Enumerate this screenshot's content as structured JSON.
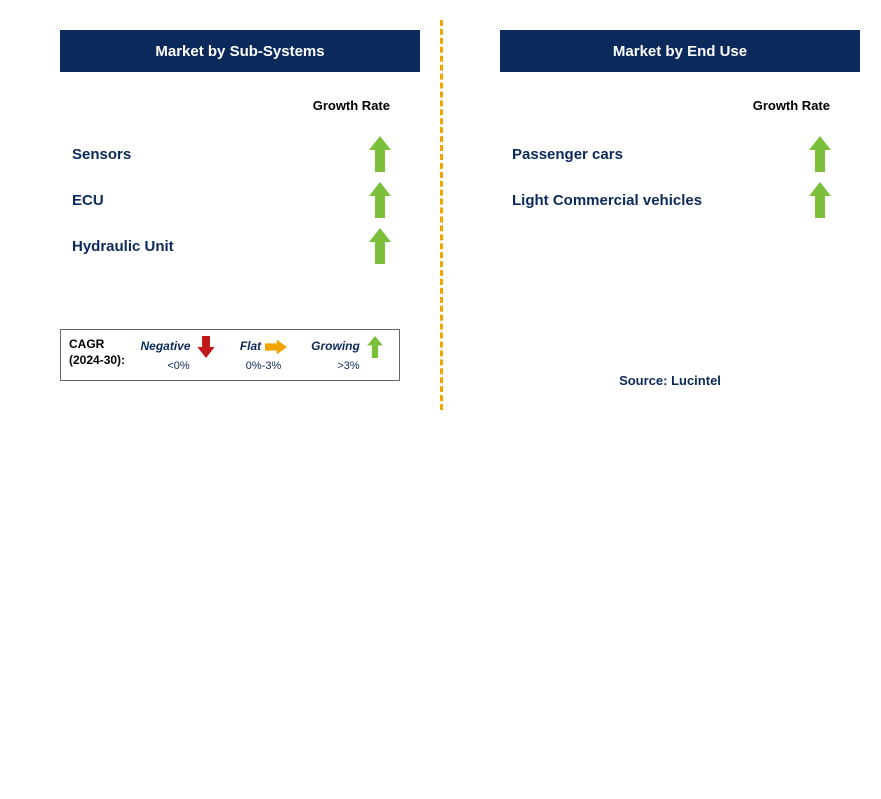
{
  "colors": {
    "header_bg": "#0b2a5b",
    "header_text": "#ffffff",
    "label_text": "#0b2a5b",
    "growth_rate_text": "#000000",
    "divider": "#f0a500",
    "arrow_green": "#7bbf3a",
    "arrow_red": "#c01818",
    "arrow_yellow": "#f0a500",
    "legend_border": "#666666",
    "source_text": "#0b2a5b"
  },
  "fontsizes": {
    "header": 15,
    "item": 15,
    "growth_label": 13,
    "legend": 12,
    "source": 13
  },
  "panels": {
    "left": {
      "title": "Market by Sub-Systems",
      "growth_label": "Growth Rate",
      "items": [
        {
          "label": "Sensors",
          "growth": "growing"
        },
        {
          "label": "ECU",
          "growth": "growing"
        },
        {
          "label": "Hydraulic Unit",
          "growth": "growing"
        }
      ]
    },
    "right": {
      "title": "Market by End Use",
      "growth_label": "Growth Rate",
      "items": [
        {
          "label": "Passenger cars",
          "growth": "growing"
        },
        {
          "label": "Light Commercial vehicles",
          "growth": "growing"
        }
      ]
    }
  },
  "legend": {
    "title_line1": "CAGR",
    "title_line2": "(2024-30):",
    "entries": [
      {
        "name": "Negative",
        "range": "<0%",
        "icon": "down-red"
      },
      {
        "name": "Flat",
        "range": "0%-3%",
        "icon": "right-yellow"
      },
      {
        "name": "Growing",
        "range": ">3%",
        "icon": "up-green"
      }
    ]
  },
  "source": "Source: Lucintel"
}
